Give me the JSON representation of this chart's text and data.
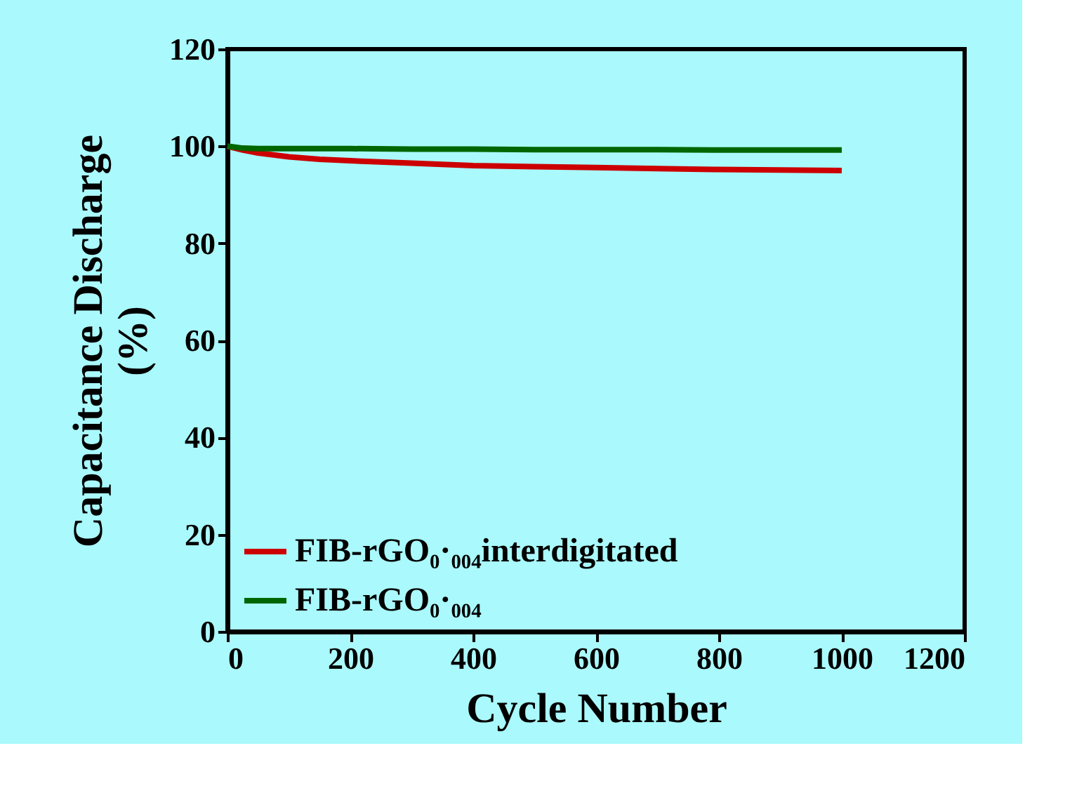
{
  "chart_data": {
    "type": "line",
    "xlabel": "Cycle Number",
    "ylabel": "Capacitance Discharge (%)",
    "x": [
      0,
      25,
      50,
      100,
      150,
      200,
      300,
      400,
      500,
      600,
      700,
      800,
      900,
      1000
    ],
    "series": [
      {
        "name": "FIB-rGO₀·₀₀₄interdigitated",
        "color": "#cc0000",
        "values": [
          100,
          99.2,
          98.6,
          97.8,
          97.3,
          97,
          96.5,
          96,
          95.8,
          95.6,
          95.4,
          95.2,
          95.1,
          95
        ]
      },
      {
        "name": "FIB-rGO₀·₀₀₄",
        "color": "#006600",
        "values": [
          100,
          99.6,
          99.5,
          99.5,
          99.5,
          99.5,
          99.4,
          99.4,
          99.3,
          99.3,
          99.3,
          99.2,
          99.2,
          99.2
        ]
      }
    ],
    "xlim": [
      0,
      1200
    ],
    "xticks": [
      0,
      200,
      400,
      600,
      800,
      1000,
      1200
    ],
    "ylim": [
      0,
      120
    ],
    "yticks": [
      0,
      20,
      40,
      60,
      80,
      100,
      120
    ],
    "grid": false,
    "legend": "bottom left",
    "marker": "none",
    "line_style": "solid"
  }
}
